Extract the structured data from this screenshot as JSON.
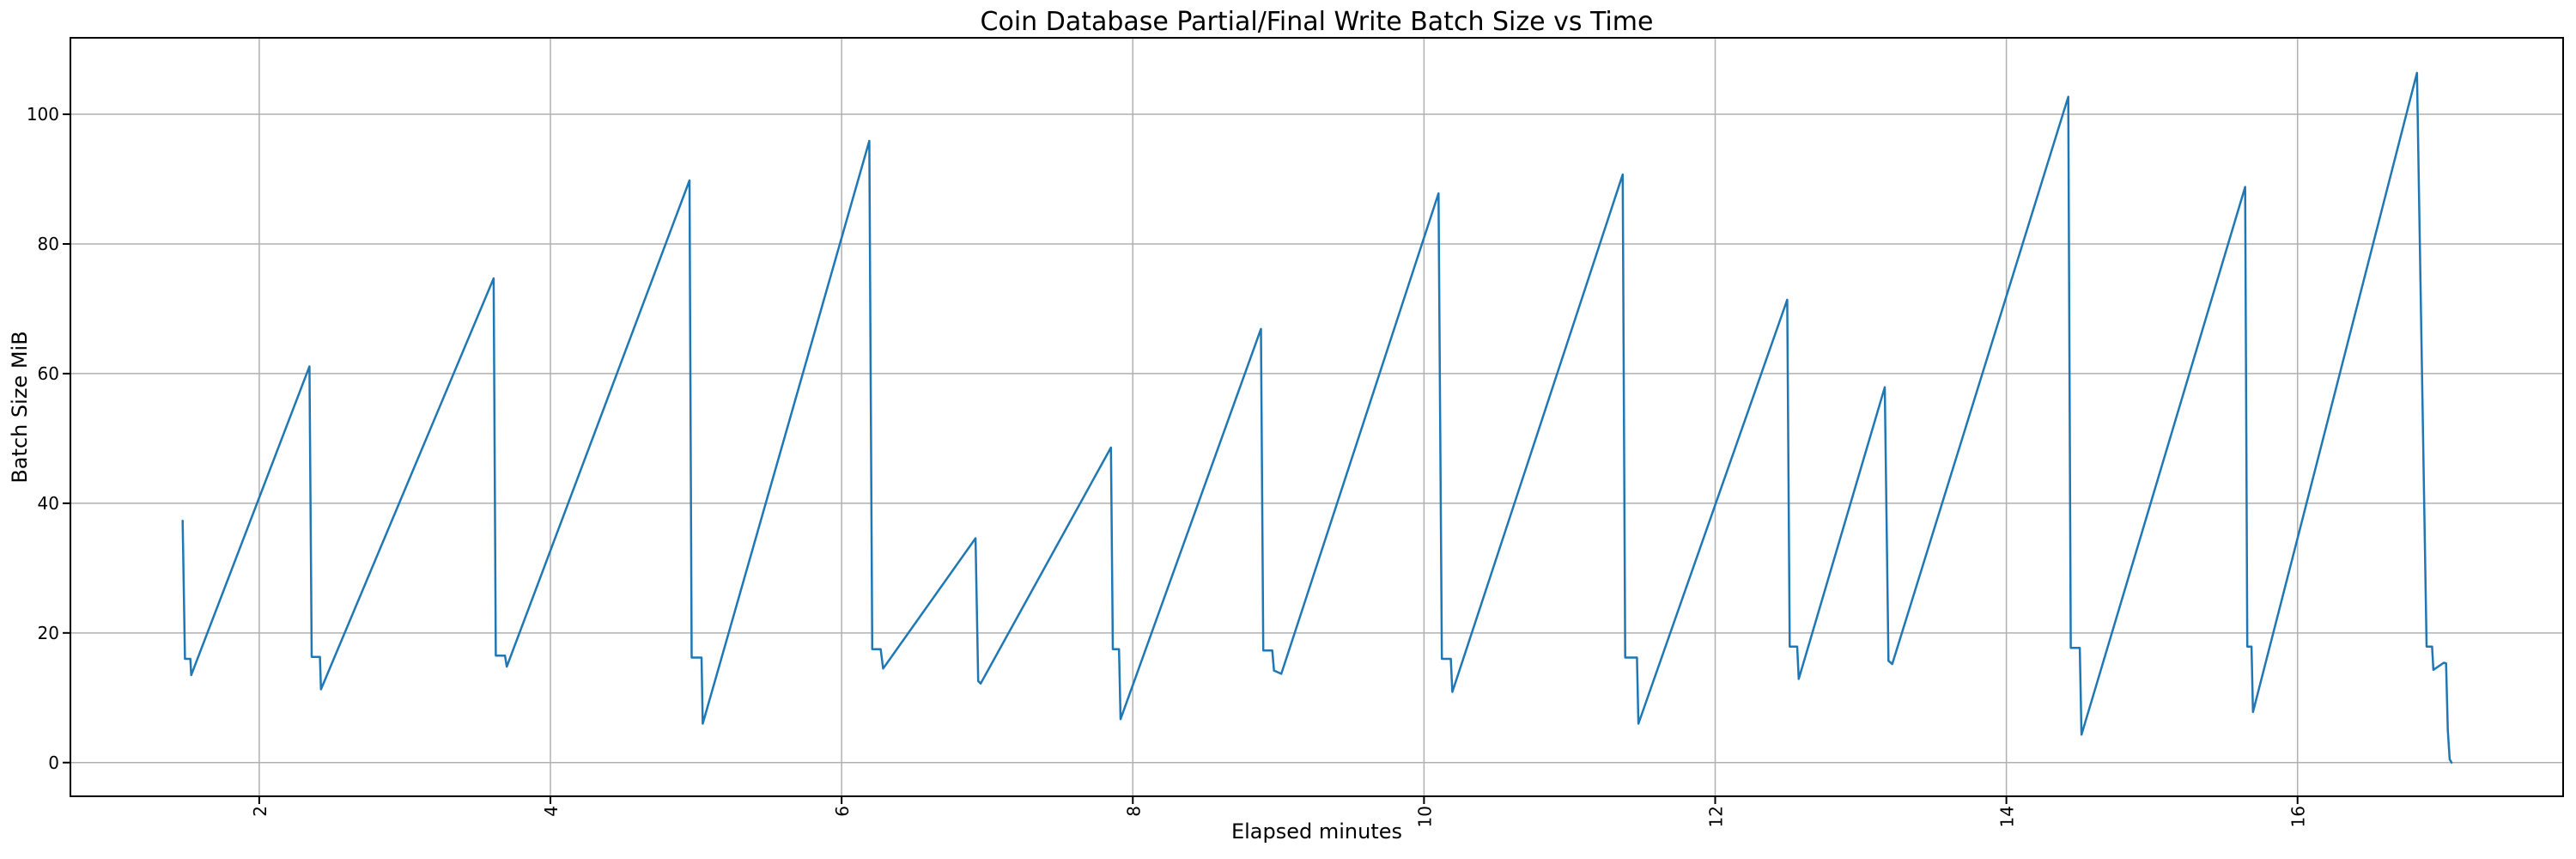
{
  "chart_data": {
    "type": "line",
    "title": "Coin Database Partial/Final Write Batch Size vs Time",
    "xlabel": "Elapsed minutes",
    "ylabel": "Batch Size MiB",
    "xlim": [
      0.703,
      17.824
    ],
    "ylim": [
      -5.2,
      111.8
    ],
    "xticks": [
      2,
      4,
      6,
      8,
      10,
      12,
      14,
      16
    ],
    "yticks": [
      0,
      20,
      40,
      60,
      80,
      100
    ],
    "grid": true,
    "grid_color": "#b0b0b0",
    "spine_color": "#000000",
    "line_color": "#1f77b4",
    "background": "#ffffff",
    "x_tick_rotation_deg": 90,
    "series": [
      {
        "name": "batch_size_mib",
        "points": [
          [
            1.474,
            37.3
          ],
          [
            1.49,
            16.0
          ],
          [
            1.527,
            16.0
          ],
          [
            1.533,
            13.5
          ],
          [
            2.345,
            61.1
          ],
          [
            2.36,
            16.3
          ],
          [
            2.417,
            16.3
          ],
          [
            2.424,
            11.3
          ],
          [
            3.61,
            74.7
          ],
          [
            3.625,
            16.5
          ],
          [
            3.688,
            16.5
          ],
          [
            3.7,
            14.8
          ],
          [
            4.955,
            89.8
          ],
          [
            4.97,
            16.2
          ],
          [
            5.038,
            16.2
          ],
          [
            5.046,
            6.0
          ],
          [
            6.19,
            95.9
          ],
          [
            6.21,
            17.5
          ],
          [
            6.268,
            17.5
          ],
          [
            6.285,
            14.5
          ],
          [
            6.92,
            34.6
          ],
          [
            6.938,
            12.6
          ],
          [
            6.955,
            12.2
          ],
          [
            7.85,
            48.6
          ],
          [
            7.863,
            17.5
          ],
          [
            7.905,
            17.5
          ],
          [
            7.916,
            6.7
          ],
          [
            8.88,
            66.9
          ],
          [
            8.896,
            17.3
          ],
          [
            8.958,
            17.3
          ],
          [
            8.97,
            14.2
          ],
          [
            9.02,
            13.7
          ],
          [
            10.1,
            87.8
          ],
          [
            10.123,
            16.0
          ],
          [
            10.184,
            16.0
          ],
          [
            10.195,
            10.9
          ],
          [
            11.365,
            90.7
          ],
          [
            11.382,
            16.2
          ],
          [
            11.463,
            16.2
          ],
          [
            11.473,
            6.0
          ],
          [
            12.495,
            71.4
          ],
          [
            12.512,
            17.9
          ],
          [
            12.563,
            17.9
          ],
          [
            12.574,
            12.9
          ],
          [
            13.165,
            57.9
          ],
          [
            13.19,
            15.7
          ],
          [
            13.216,
            15.2
          ],
          [
            14.425,
            102.7
          ],
          [
            14.442,
            17.7
          ],
          [
            14.504,
            17.7
          ],
          [
            14.516,
            4.3
          ],
          [
            15.64,
            88.8
          ],
          [
            15.655,
            17.9
          ],
          [
            15.684,
            17.9
          ],
          [
            15.694,
            7.8
          ],
          [
            16.82,
            106.4
          ],
          [
            16.886,
            17.9
          ],
          [
            16.924,
            17.9
          ],
          [
            16.933,
            14.3
          ],
          [
            17.005,
            15.4
          ],
          [
            17.02,
            15.3
          ],
          [
            17.032,
            5.0
          ],
          [
            17.045,
            0.5
          ],
          [
            17.058,
            0.0
          ]
        ]
      }
    ]
  }
}
